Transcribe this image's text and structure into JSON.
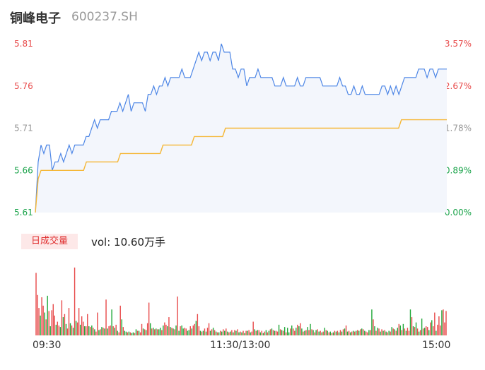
{
  "header": {
    "name": "铜峰电子",
    "code": "600237.SH"
  },
  "chart_data": {
    "type": "line",
    "price_axis": {
      "ticks": [
        "5.81",
        "5.76",
        "5.71",
        "5.66",
        "5.61"
      ],
      "values": [
        5.81,
        5.76,
        5.71,
        5.66,
        5.61
      ]
    },
    "pct_axis": {
      "ticks": [
        "3.57%",
        "2.67%",
        "1.78%",
        "0.89%",
        "0.00%"
      ]
    },
    "ylim": [
      5.61,
      5.81
    ],
    "base_price": 5.61,
    "x_ticks": [
      "09:30",
      "11:30/13:00",
      "15:00"
    ],
    "series": [
      {
        "values": [
          5.61,
          5.67,
          5.69,
          5.68,
          5.69,
          5.69,
          5.66,
          5.67,
          5.67,
          5.68,
          5.67,
          5.68,
          5.69,
          5.68,
          5.69,
          5.69,
          5.69,
          5.69,
          5.7,
          5.7,
          5.71,
          5.72,
          5.71,
          5.72,
          5.72,
          5.72,
          5.72,
          5.73,
          5.73,
          5.73,
          5.74,
          5.73,
          5.74,
          5.75,
          5.73,
          5.74,
          5.74,
          5.74,
          5.74,
          5.73,
          5.75,
          5.75,
          5.76,
          5.75,
          5.76,
          5.76,
          5.77,
          5.76,
          5.77,
          5.77,
          5.77,
          5.77,
          5.78,
          5.77,
          5.77,
          5.77,
          5.78,
          5.79,
          5.8,
          5.79,
          5.8,
          5.8,
          5.79,
          5.8,
          5.8,
          5.79,
          5.81,
          5.8,
          5.8,
          5.8,
          5.78,
          5.78,
          5.77,
          5.78,
          5.78,
          5.76,
          5.77,
          5.77,
          5.77,
          5.78,
          5.77,
          5.77,
          5.77,
          5.77,
          5.77,
          5.76,
          5.76,
          5.76,
          5.77,
          5.76,
          5.76,
          5.76,
          5.76,
          5.77,
          5.76,
          5.76,
          5.77,
          5.77,
          5.77,
          5.77,
          5.77,
          5.77,
          5.76,
          5.76,
          5.76,
          5.76,
          5.76,
          5.76,
          5.77,
          5.76,
          5.76,
          5.75,
          5.75,
          5.76,
          5.75,
          5.75,
          5.76,
          5.75,
          5.75,
          5.75,
          5.75,
          5.75,
          5.75,
          5.76,
          5.76,
          5.75,
          5.76,
          5.75,
          5.76,
          5.75,
          5.76,
          5.77,
          5.77,
          5.77,
          5.77,
          5.77,
          5.78,
          5.78,
          5.78,
          5.77,
          5.78,
          5.78,
          5.77,
          5.78,
          5.78,
          5.78,
          5.78
        ],
        "color": "#4d86e6"
      },
      {
        "values": [
          5.61,
          5.65,
          5.66,
          5.66,
          5.66,
          5.66,
          5.66,
          5.66,
          5.66,
          5.66,
          5.66,
          5.66,
          5.66,
          5.66,
          5.66,
          5.66,
          5.66,
          5.66,
          5.67,
          5.67,
          5.67,
          5.67,
          5.67,
          5.67,
          5.67,
          5.67,
          5.67,
          5.67,
          5.67,
          5.67,
          5.68,
          5.68,
          5.68,
          5.68,
          5.68,
          5.68,
          5.68,
          5.68,
          5.68,
          5.68,
          5.68,
          5.68,
          5.68,
          5.68,
          5.68,
          5.69,
          5.69,
          5.69,
          5.69,
          5.69,
          5.69,
          5.69,
          5.69,
          5.69,
          5.69,
          5.69,
          5.7,
          5.7,
          5.7,
          5.7,
          5.7,
          5.7,
          5.7,
          5.7,
          5.7,
          5.7,
          5.7,
          5.71,
          5.71,
          5.71,
          5.71,
          5.71,
          5.71,
          5.71,
          5.71,
          5.71,
          5.71,
          5.71,
          5.71,
          5.71,
          5.71,
          5.71,
          5.71,
          5.71,
          5.71,
          5.71,
          5.71,
          5.71,
          5.71,
          5.71,
          5.71,
          5.71,
          5.71,
          5.71,
          5.71,
          5.71,
          5.71,
          5.71,
          5.71,
          5.71,
          5.71,
          5.71,
          5.71,
          5.71,
          5.71,
          5.71,
          5.71,
          5.71,
          5.71,
          5.71,
          5.71,
          5.71,
          5.71,
          5.71,
          5.71,
          5.71,
          5.71,
          5.71,
          5.71,
          5.71,
          5.71,
          5.71,
          5.71,
          5.71,
          5.71,
          5.71,
          5.71,
          5.71,
          5.71,
          5.72,
          5.72,
          5.72,
          5.72,
          5.72,
          5.72,
          5.72,
          5.72,
          5.72,
          5.72,
          5.72,
          5.72,
          5.72,
          5.72,
          5.72,
          5.72,
          5.72
        ],
        "color": "#f5b735"
      }
    ],
    "volume": {
      "label": "日成交量",
      "value_text": "vol: 10.60万手",
      "values": [
        0.82,
        0.53,
        0.36,
        0.26,
        0.5,
        0.39,
        0.3,
        0.21,
        0.52,
        0.32,
        0.12,
        0.33,
        0.41,
        0.26,
        0.14,
        0.18,
        0.13,
        0.11,
        0.46,
        0.24,
        0.28,
        0.15,
        0.09,
        0.36,
        0.16,
        0.13,
        0.1,
        0.89,
        0.19,
        0.17,
        0.36,
        0.14,
        0.25,
        0.18,
        0.12,
        0.12,
        0.28,
        0.12,
        0.11,
        0.13,
        0.1,
        0.08,
        0.05,
        0.3,
        0.07,
        0.08,
        0.11,
        0.1,
        0.09,
        0.47,
        0.09,
        0.12,
        0.13,
        0.34,
        0.12,
        0.1,
        0.14,
        0.06,
        0.04,
        0.39,
        0.21,
        0.11,
        0.06,
        0.05,
        0.04,
        0.05,
        0.04,
        0.03,
        0.04,
        0.03,
        0.08,
        0.06,
        0.06,
        0.04,
        0.15,
        0.09,
        0.08,
        0.07,
        0.16,
        0.43,
        0.16,
        0.09,
        0.1,
        0.08,
        0.09,
        0.08,
        0.08,
        0.1,
        0.07,
        0.13,
        0.17,
        0.14,
        0.12,
        0.24,
        0.11,
        0.1,
        0.09,
        0.08,
        0.13,
        0.51,
        0.06,
        0.12,
        0.13,
        0.09,
        0.1,
        0.09,
        0.06,
        0.07,
        0.12,
        0.09,
        0.13,
        0.15,
        0.19,
        0.28,
        0.12,
        0.06,
        0.05,
        0.06,
        0.09,
        0.05,
        0.1,
        0.16,
        0.06,
        0.08,
        0.1,
        0.07,
        0.05,
        0.04,
        0.04,
        0.06,
        0.05,
        0.08,
        0.06,
        0.09,
        0.05,
        0.04,
        0.05,
        0.07,
        0.04,
        0.07,
        0.06,
        0.08,
        0.04,
        0.05,
        0.04,
        0.06,
        0.03,
        0.06,
        0.06,
        0.07,
        0.04,
        0.05,
        0.18,
        0.08,
        0.06,
        0.07,
        0.07,
        0.04,
        0.06,
        0.03,
        0.05,
        0.07,
        0.04,
        0.06,
        0.08,
        0.09,
        0.07,
        0.06,
        0.06,
        0.05,
        0.14,
        0.08,
        0.07,
        0.06,
        0.11,
        0.04,
        0.1,
        0.04,
        0.09,
        0.13,
        0.09,
        0.06,
        0.1,
        0.14,
        0.12,
        0.16,
        0.09,
        0.05,
        0.06,
        0.07,
        0.11,
        0.07,
        0.15,
        0.08,
        0.07,
        0.04,
        0.07,
        0.08,
        0.05,
        0.06,
        0.04,
        0.05,
        0.1,
        0.07,
        0.06,
        0.04,
        0.05,
        0.03,
        0.04,
        0.06,
        0.05,
        0.06,
        0.04,
        0.07,
        0.05,
        0.08,
        0.09,
        0.13,
        0.05,
        0.06,
        0.04,
        0.05,
        0.06,
        0.05,
        0.06,
        0.07,
        0.06,
        0.08,
        0.09,
        0.08,
        0.06,
        0.05,
        0.04,
        0.07,
        0.07,
        0.34,
        0.21,
        0.12,
        0.06,
        0.1,
        0.09,
        0.05,
        0.08,
        0.06,
        0.07,
        0.05,
        0.04,
        0.06,
        0.05,
        0.11,
        0.09,
        0.08,
        0.06,
        0.1,
        0.15,
        0.13,
        0.07,
        0.15,
        0.09,
        0.06,
        0.1,
        0.06,
        0.34,
        0.24,
        0.12,
        0.11,
        0.17,
        0.09,
        0.05,
        0.07,
        0.22,
        0.09,
        0.1,
        0.12,
        0.11,
        0.07,
        0.17,
        0.2,
        0.12,
        0.3,
        0.06,
        0.14,
        0.25,
        0.13,
        0.33,
        0.34,
        0.17,
        0.32
      ],
      "colors": [
        "r",
        "r",
        "r",
        "g",
        "r",
        "r",
        "g",
        "r",
        "g",
        "r",
        "g",
        "r",
        "r",
        "r",
        "g",
        "r",
        "r",
        "g",
        "r",
        "g",
        "r",
        "g",
        "r",
        "r",
        "g",
        "r",
        "g",
        "r",
        "g",
        "r",
        "r",
        "g",
        "r",
        "r",
        "g",
        "r",
        "r",
        "g",
        "r",
        "g",
        "r",
        "g",
        "r",
        "r",
        "g",
        "r",
        "g",
        "r",
        "g",
        "r",
        "g",
        "r",
        "r",
        "g",
        "r",
        "g",
        "r",
        "g",
        "r",
        "r",
        "g",
        "r",
        "g",
        "g",
        "r",
        "g",
        "r",
        "g",
        "g",
        "r",
        "g",
        "r",
        "g",
        "r",
        "r",
        "g",
        "r",
        "g",
        "r",
        "r",
        "g",
        "r",
        "g",
        "r",
        "g",
        "r",
        "g",
        "g",
        "r",
        "g",
        "r",
        "r",
        "g",
        "r",
        "g",
        "r",
        "g",
        "r",
        "g",
        "r",
        "g",
        "r",
        "g",
        "g",
        "r",
        "r",
        "g",
        "g",
        "r",
        "g",
        "r",
        "r",
        "g",
        "r",
        "r",
        "g",
        "r",
        "g",
        "r",
        "g",
        "r",
        "r",
        "g",
        "r",
        "g",
        "r",
        "g",
        "r",
        "g",
        "r",
        "g",
        "r",
        "g",
        "r",
        "g",
        "r",
        "g",
        "r",
        "g",
        "r",
        "g",
        "r",
        "g",
        "r",
        "g",
        "r",
        "g",
        "r",
        "g",
        "r",
        "g",
        "r",
        "r",
        "g",
        "r",
        "g",
        "r",
        "g",
        "r",
        "g",
        "r",
        "g",
        "r",
        "g",
        "r",
        "g",
        "r",
        "g",
        "r",
        "r",
        "g",
        "r",
        "g",
        "r",
        "g",
        "r",
        "g",
        "g",
        "r",
        "g",
        "r",
        "r",
        "g",
        "r",
        "g",
        "r",
        "g",
        "r",
        "g",
        "r",
        "g",
        "r",
        "g",
        "r",
        "g",
        "r",
        "g",
        "r",
        "g",
        "r",
        "g",
        "r",
        "g",
        "r",
        "g",
        "r",
        "g",
        "r",
        "g",
        "r",
        "g",
        "r",
        "g",
        "r",
        "g",
        "r",
        "g",
        "r",
        "g",
        "r",
        "g",
        "r",
        "g",
        "r",
        "g",
        "r",
        "g",
        "r",
        "g",
        "r",
        "g",
        "r",
        "r",
        "g",
        "r",
        "g",
        "r",
        "g",
        "r",
        "g",
        "r",
        "g",
        "r",
        "g",
        "r",
        "g",
        "r",
        "g",
        "r",
        "g",
        "r",
        "g",
        "r",
        "g",
        "r",
        "g",
        "r",
        "g",
        "r",
        "g",
        "r",
        "r",
        "g",
        "r",
        "g",
        "r",
        "g",
        "r",
        "g",
        "r",
        "g",
        "r",
        "g",
        "r",
        "r",
        "g",
        "r",
        "g",
        "r",
        "r",
        "g",
        "r",
        "r",
        "r",
        "g",
        "r",
        "r",
        "r"
      ],
      "color_up": "#e84b4b",
      "color_down": "#22a83a"
    },
    "colors": {
      "up_text": "#e84b4b",
      "down_text": "#1aa34a",
      "flat_text": "#999999"
    },
    "grid": false
  }
}
